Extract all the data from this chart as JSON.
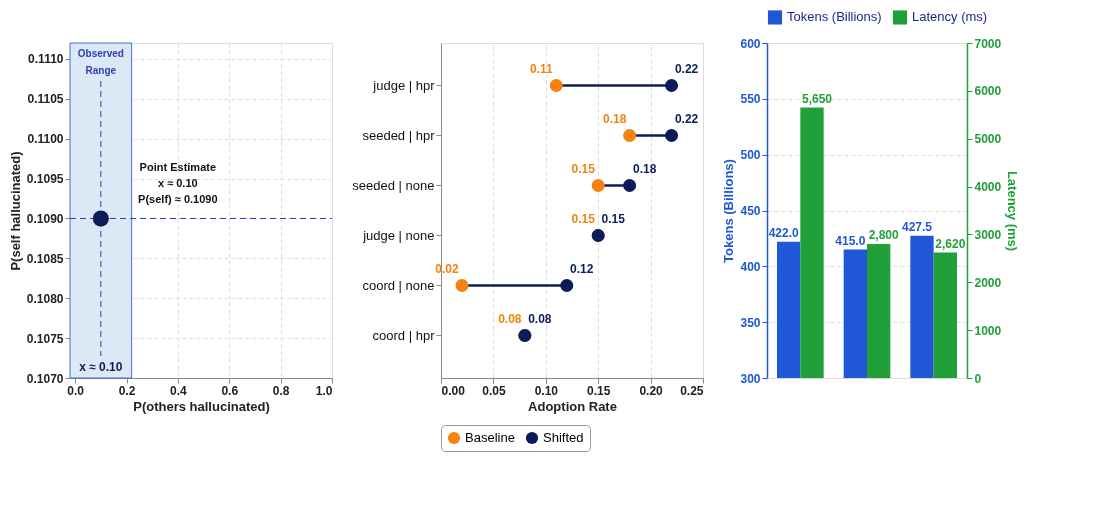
{
  "chart_data": [
    {
      "type": "scatter",
      "xlabel": "P(others hallucinated)",
      "ylabel": "P(self hallucinated)",
      "x": [
        0.1
      ],
      "values": [
        0.109
      ],
      "color": "#0c1c5a",
      "marker": "circle",
      "grid": true,
      "xlim": [
        -0.02,
        1.0
      ],
      "ylim": [
        0.107,
        0.1112
      ],
      "xticks": [
        {
          "value": 0,
          "label": "0.0"
        },
        0.2,
        0.4,
        0.6,
        0.8,
        {
          "value": 1,
          "label": "1.0"
        }
      ],
      "yticks": [
        {
          "value": 0.107,
          "label": "0.1070"
        },
        0.1075,
        {
          "value": 0.108,
          "label": "0.1080"
        },
        0.1085,
        {
          "value": 0.109,
          "label": "0.1090"
        },
        0.1095,
        {
          "value": 0.11,
          "label": "0.1100"
        },
        0.1105,
        {
          "value": 0.111,
          "label": "0.1110"
        }
      ],
      "bands": [
        {
          "axis": "x",
          "from": -0.02,
          "to": 0.22,
          "label": "Observed Range",
          "color": "#dde8f6"
        }
      ],
      "ref_lines": [
        {
          "axis": "y",
          "value": 0.109,
          "color": "#2a3fb0",
          "line_style": "dashed"
        },
        {
          "axis": "x",
          "value": 0.1,
          "label": "x ≈ 0.10",
          "color": "#2a3fb0",
          "line_style": "dashed"
        }
      ],
      "annotations": [
        "Point Estimate\nx ≈ 0.10\nP(self) ≈ 0.1090"
      ]
    },
    {
      "type": "scatter",
      "orientation": "horizontal",
      "xlabel": "Adoption Rate",
      "marker": "circle",
      "grid": "x",
      "legend": "bottom",
      "categories": [
        "judge | hpr",
        "seeded | hpr",
        "seeded | none",
        "judge | none",
        "coord | none",
        "coord | hpr"
      ],
      "xlim": [
        0,
        0.25
      ],
      "xticks": [
        {
          "value": 0,
          "label": "0.00"
        },
        0.05,
        {
          "value": 0.1,
          "label": "0.10"
        },
        0.15,
        {
          "value": 0.2,
          "label": "0.20"
        },
        0.25
      ],
      "series": [
        {
          "name": "Baseline",
          "color": "#f5820f",
          "values": [
            0.11,
            0.18,
            0.15,
            0.15,
            0.02,
            0.08
          ],
          "value_labels": [
            "0.11",
            "0.18",
            "0.15",
            "0.15",
            "0.02",
            "0.08"
          ]
        },
        {
          "name": "Shifted",
          "color": "#0c1c5a",
          "values": [
            0.22,
            0.22,
            0.18,
            0.15,
            0.12,
            0.08
          ],
          "value_labels": [
            "0.22",
            "0.22",
            "0.18",
            "0.15",
            "0.12",
            "0.08"
          ]
        }
      ]
    },
    {
      "type": "bar",
      "categories": [
        null,
        null,
        null
      ],
      "legend": "top",
      "grid": "y",
      "ylabel": "Tokens (Billions)",
      "y2label": "Latency (ms)",
      "ylim": [
        300,
        600
      ],
      "yticks": [
        300,
        350,
        400,
        450,
        500,
        550,
        600
      ],
      "y2lim": [
        0,
        7000
      ],
      "y2ticks": [
        0,
        1000,
        2000,
        3000,
        4000,
        5000,
        6000,
        7000
      ],
      "series": [
        {
          "name": "Tokens (Billions)",
          "color": "#1f57d6",
          "values": [
            422.0,
            415.0,
            427.5
          ],
          "value_labels": [
            "422.0",
            "415.0",
            "427.5"
          ]
        },
        {
          "name": "Latency (ms)",
          "color": "#21a03a",
          "axis": "y2",
          "values": [
            5650,
            2800,
            2620
          ],
          "value_labels": [
            "5,650",
            "2,800",
            "2,620"
          ]
        }
      ]
    }
  ]
}
